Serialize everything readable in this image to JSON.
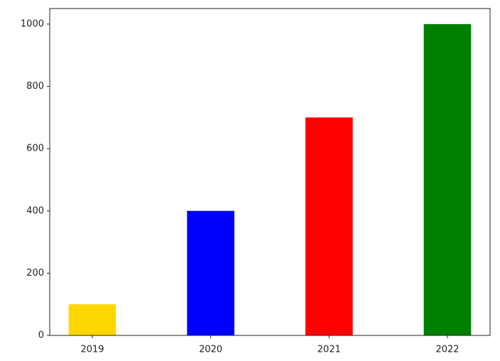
{
  "chart_data": {
    "type": "bar",
    "categories": [
      "2019",
      "2020",
      "2021",
      "2022"
    ],
    "values": [
      100,
      400,
      700,
      1000
    ],
    "colors": [
      "gold",
      "blue",
      "red",
      "green"
    ],
    "ylim": [
      0,
      1050
    ],
    "yticks": [
      0,
      200,
      400,
      600,
      800,
      1000
    ],
    "grid": false
  }
}
